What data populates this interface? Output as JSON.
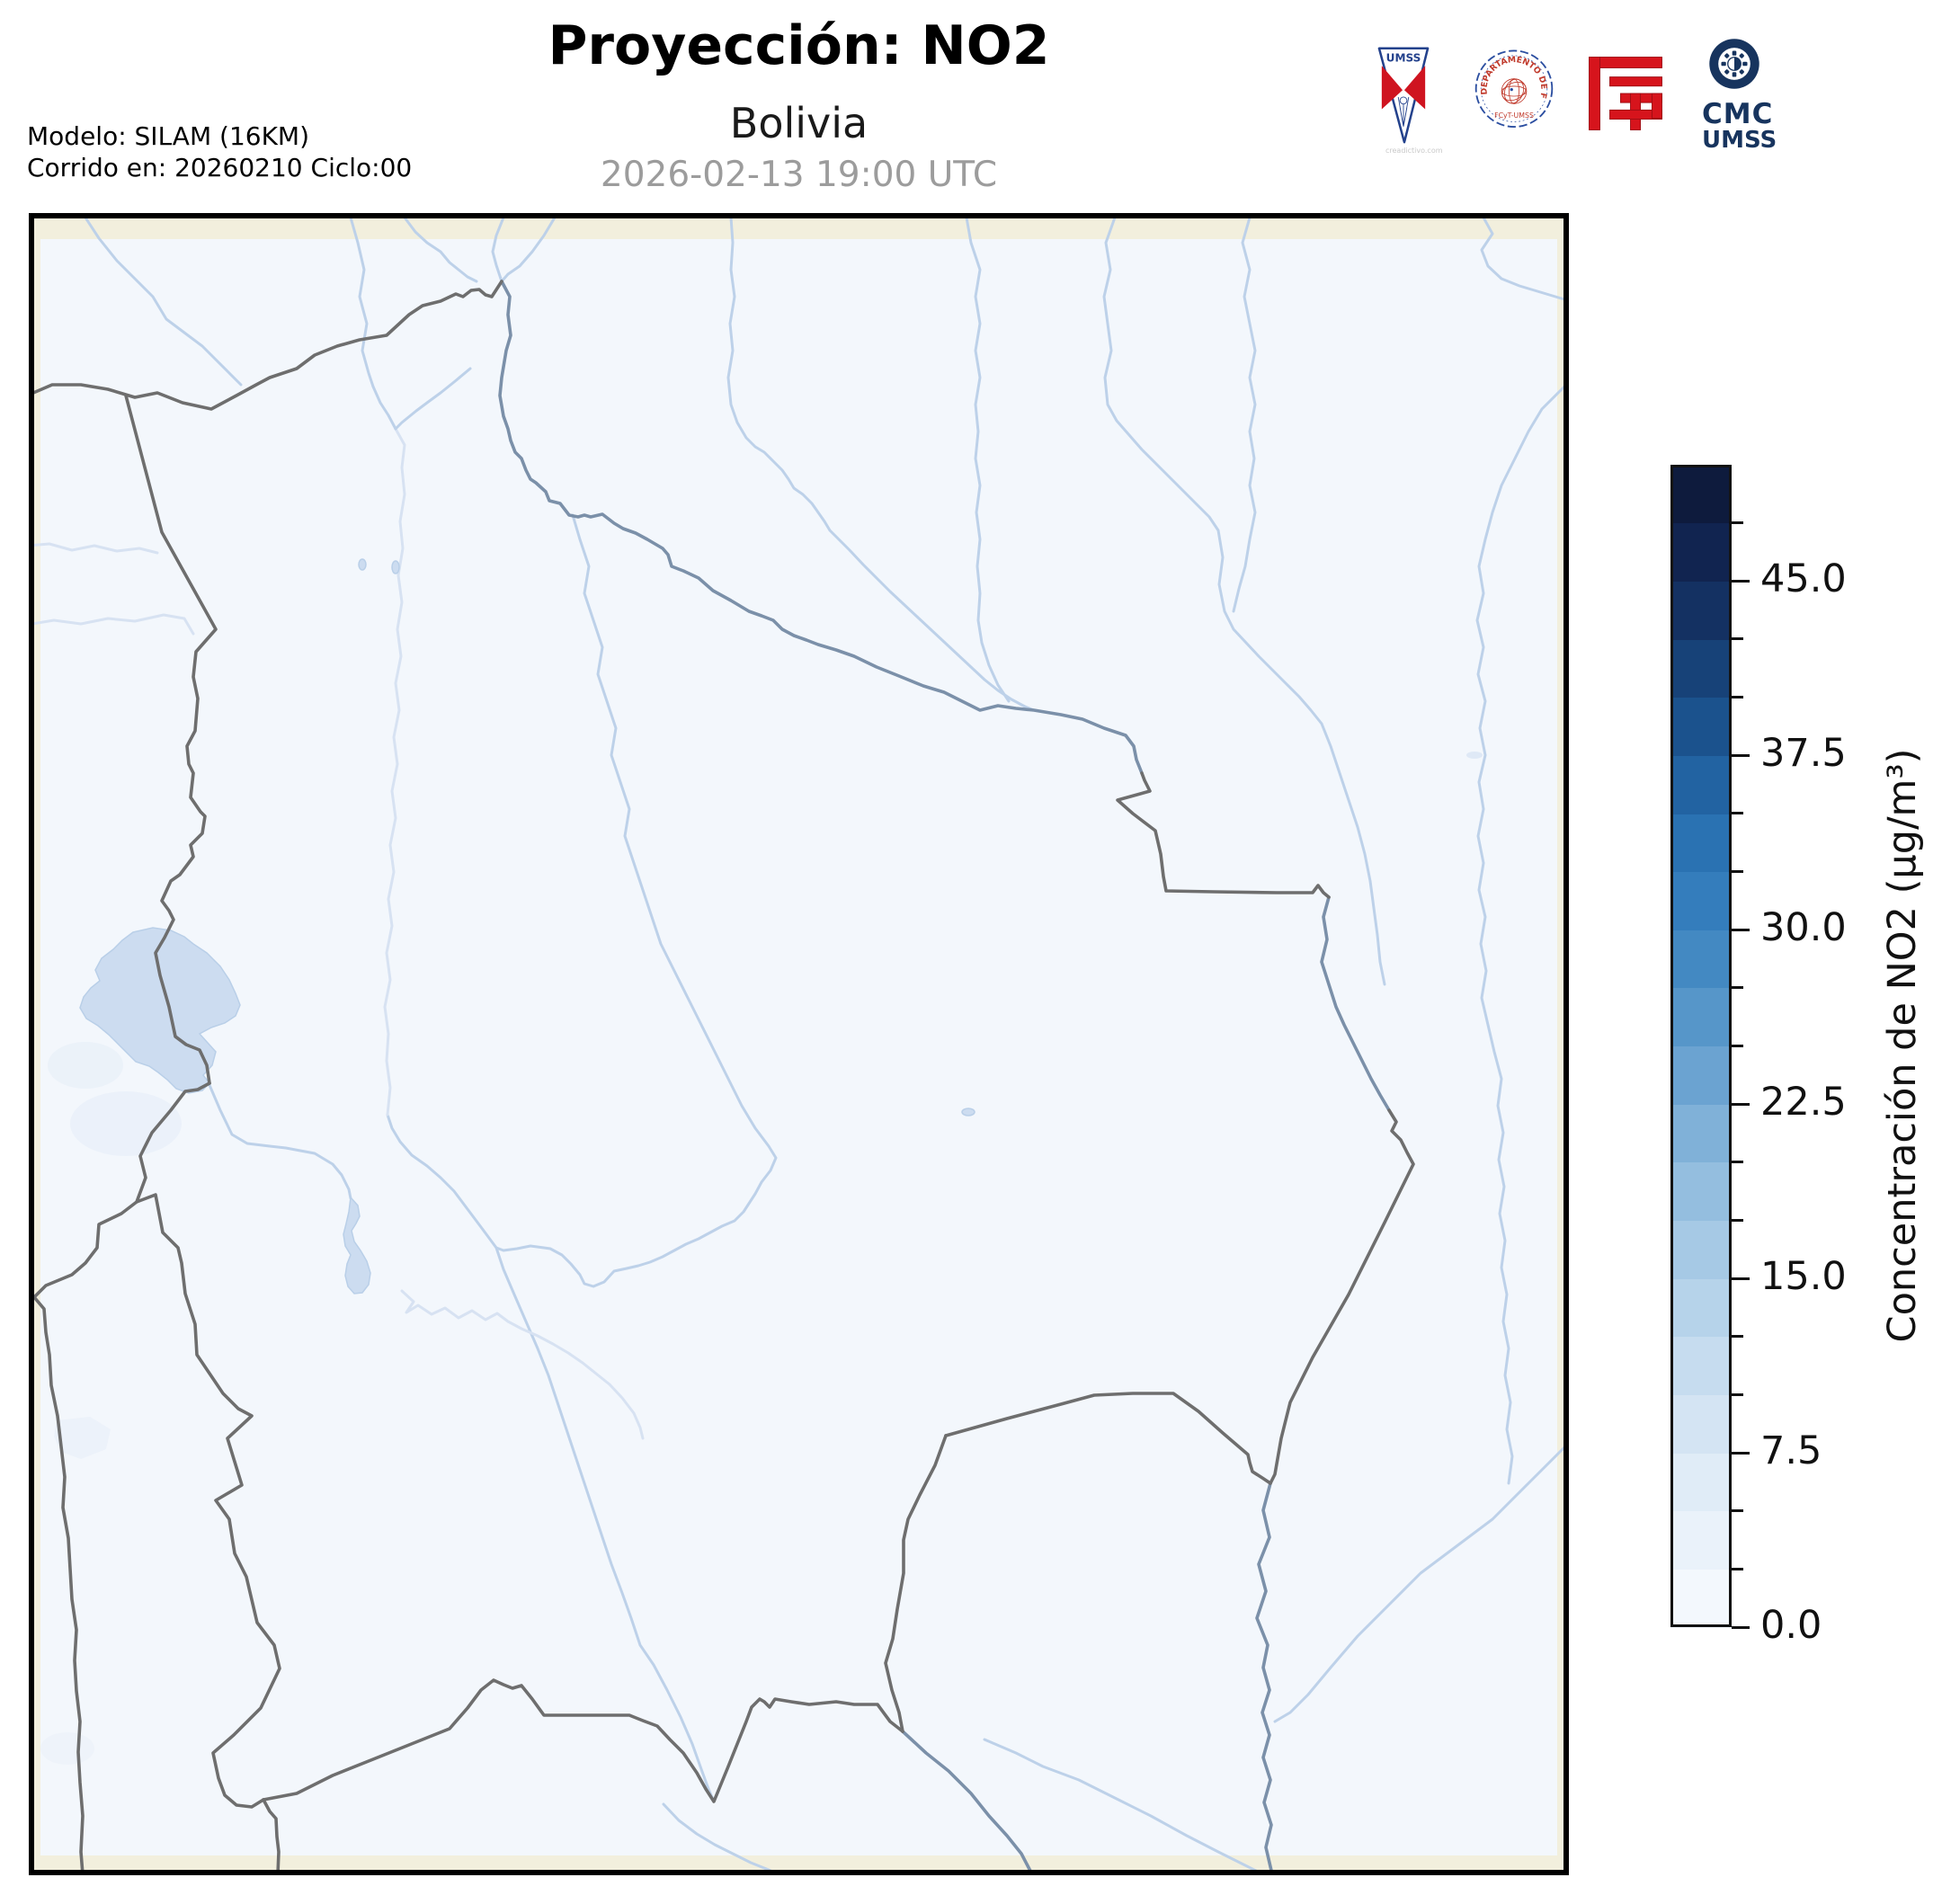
{
  "header": {
    "title": "Proyección: NO2",
    "subtitle": "Bolivia",
    "timestamp": "2026-02-13 19:00 UTC",
    "model_line1": "Modelo: SILAM (16KM)",
    "model_line2": "Corrido en: 20260210 Ciclo:00"
  },
  "logos": {
    "umss_label": "UMSS",
    "fisica_ring_text": "DEPARTAMENTO DE FÍSICA",
    "fisica_sub_text": "FCyT-UMSS",
    "cmc_line1": "CMC",
    "cmc_line2": "UMSS",
    "watermark": "creadictivo.com"
  },
  "colorbar": {
    "label": "Concentración de NO2 (µg/m³)",
    "min": 0,
    "max": 50,
    "segment_step": 2.5,
    "major_ticks": [
      {
        "value": 45,
        "label": "45.0"
      },
      {
        "value": 37.5,
        "label": "37.5"
      },
      {
        "value": 30,
        "label": "30.0"
      },
      {
        "value": 22.5,
        "label": "22.5"
      },
      {
        "value": 15,
        "label": "15.0"
      },
      {
        "value": 7.5,
        "label": "7.5"
      },
      {
        "value": 0,
        "label": "0.0"
      }
    ],
    "colors_bottom_to_top": [
      "#f3f8fd",
      "#eaf2fa",
      "#e0ecf7",
      "#d4e4f3",
      "#c6dcef",
      "#b6d3ea",
      "#a6c9e5",
      "#94bedf",
      "#80b1d8",
      "#6ba3d1",
      "#5696c9",
      "#4389c2",
      "#347dbc",
      "#2a72b2",
      "#2263a2",
      "#1b528d",
      "#174278",
      "#143162",
      "#112450",
      "#0e1b3d"
    ]
  },
  "map": {
    "field_color": "#f3f7fc",
    "domain_edge_color": "#f2efdd",
    "border_color": "#6e6e6e",
    "border_river_color": "#7b90a9",
    "river_color": "#bdd1e9",
    "lake_color": "#ccdcf0",
    "frame_color": "#000000"
  }
}
